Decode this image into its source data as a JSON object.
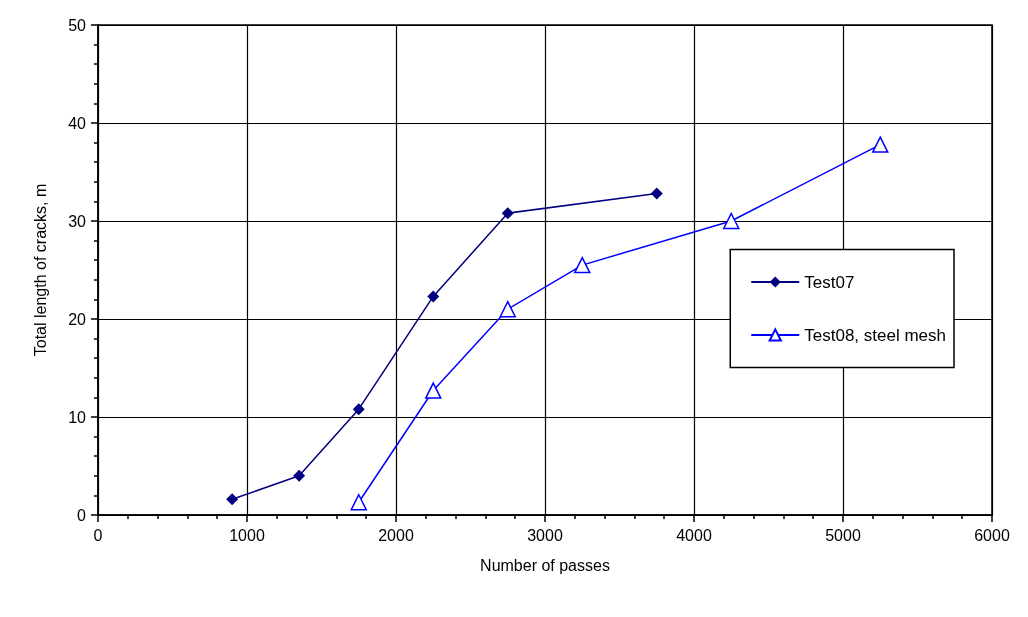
{
  "chart_data": {
    "type": "line",
    "xlabel": "Number of passes",
    "ylabel": "Total length of cracks, m",
    "xlim": [
      0,
      6000
    ],
    "xticks": [
      0,
      1000,
      2000,
      3000,
      4000,
      5000,
      6000
    ],
    "ylim": [
      0,
      50
    ],
    "yticks": [
      0,
      10,
      20,
      30,
      40,
      50
    ],
    "grid": true,
    "legend": "right",
    "series": [
      {
        "name": "Test07",
        "color": "#000080",
        "marker": "diamond",
        "x": [
          900,
          1350,
          1750,
          2250,
          2750,
          3750
        ],
        "values": [
          1.6,
          4.0,
          10.8,
          22.3,
          30.8,
          32.8
        ]
      },
      {
        "name": "Test08, steel mesh",
        "color": "#0000ff",
        "marker": "triangle",
        "x": [
          1750,
          2250,
          2750,
          3250,
          4250,
          5250
        ],
        "values": [
          1.3,
          12.7,
          21.0,
          25.5,
          30.0,
          37.8
        ]
      }
    ]
  }
}
